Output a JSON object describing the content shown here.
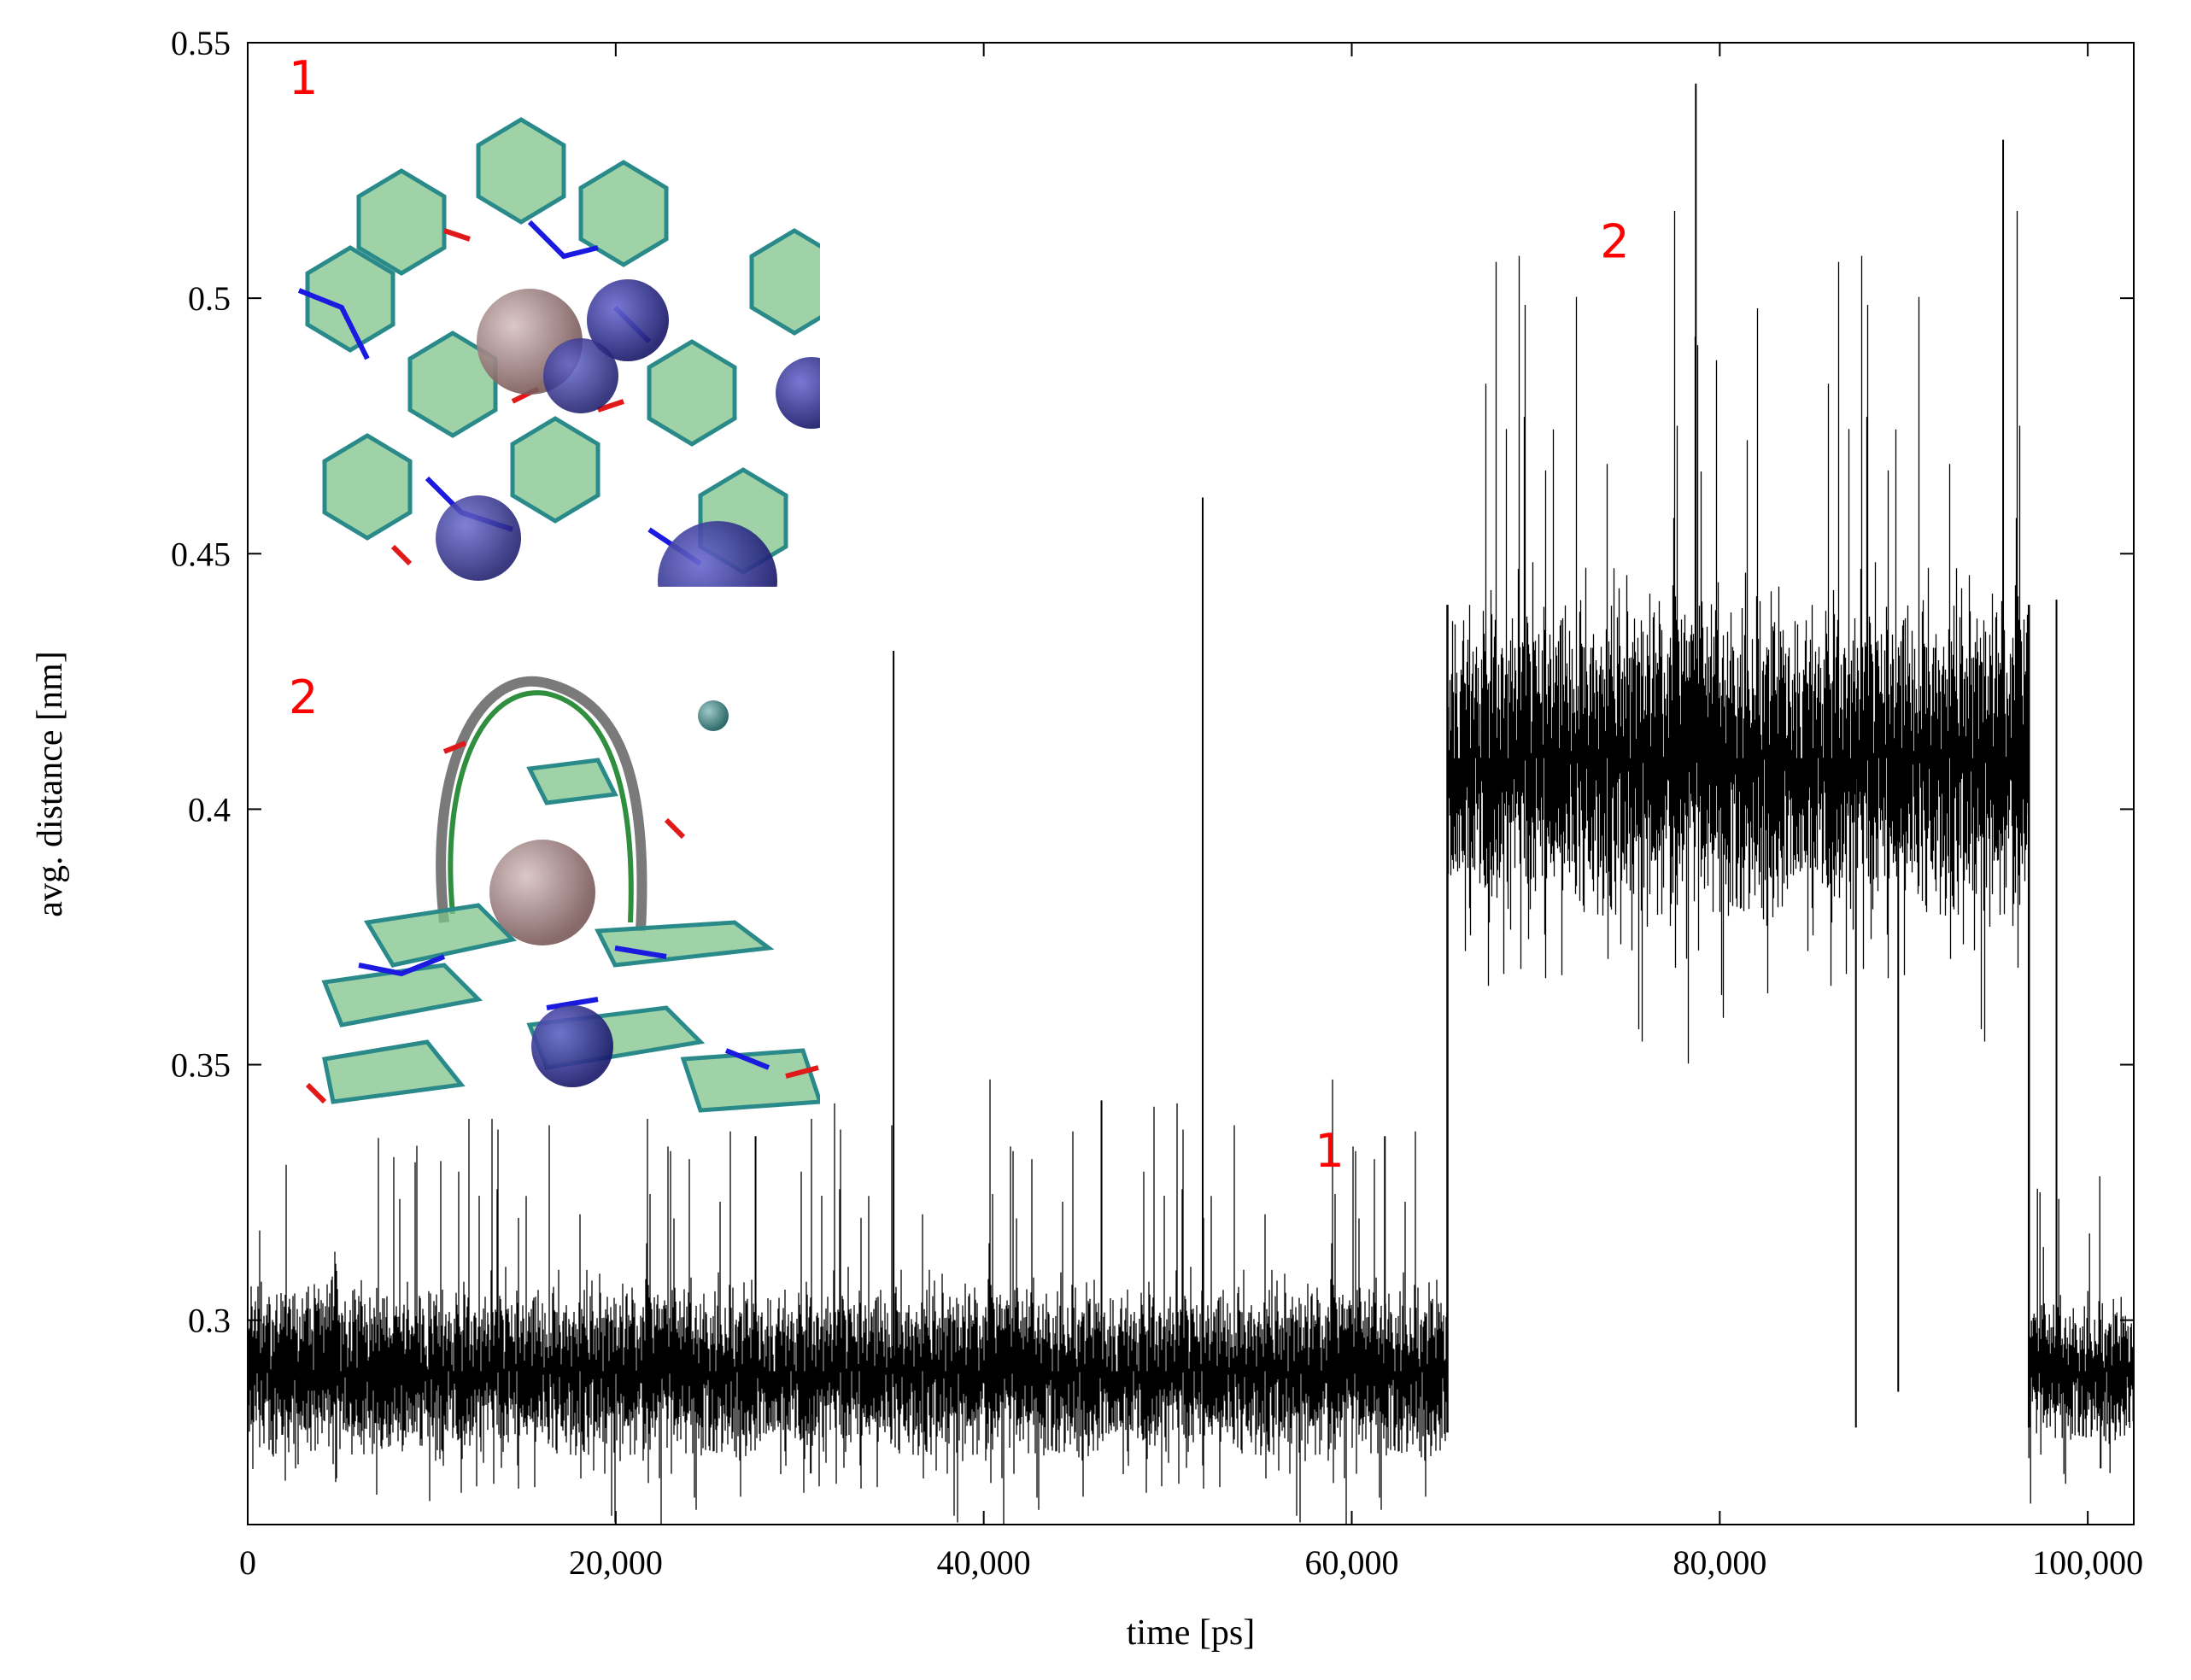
{
  "chart_data": {
    "type": "line",
    "xlabel": "time [ps]",
    "ylabel": "avg. distance [nm]",
    "xlim": [
      0,
      102500
    ],
    "ylim": [
      0.26,
      0.55
    ],
    "grid": false,
    "x_ticks": [
      0,
      20000,
      40000,
      60000,
      80000,
      100000
    ],
    "x_tick_labels": [
      "0",
      "20,000",
      "40,000",
      "60,000",
      "80,000",
      "100,000"
    ],
    "y_ticks": [
      0.3,
      0.35,
      0.4,
      0.45,
      0.5,
      0.55
    ],
    "y_tick_labels": [
      "0.3",
      "0.35",
      "0.4",
      "0.45",
      "0.5",
      "0.55"
    ],
    "line_color": "#000000",
    "annotation_color": "#ff0000",
    "segments": [
      {
        "x_start": 0,
        "x_end": 65200,
        "mean": 0.29,
        "low": 0.278,
        "high": 0.31
      },
      {
        "x_start": 65200,
        "x_end": 96800,
        "mean": 0.41,
        "low": 0.38,
        "high": 0.44
      },
      {
        "x_start": 96800,
        "x_end": 102500,
        "mean": 0.29,
        "low": 0.279,
        "high": 0.305
      }
    ],
    "spikes": [
      {
        "x": 35100,
        "y": 0.431
      },
      {
        "x": 51900,
        "y": 0.461
      },
      {
        "x": 78700,
        "y": 0.542
      },
      {
        "x": 95400,
        "y": 0.531
      },
      {
        "x": 98300,
        "y": 0.441
      },
      {
        "x": 87400,
        "y": 0.279
      },
      {
        "x": 89700,
        "y": 0.286
      },
      {
        "x": 46400,
        "y": 0.343
      },
      {
        "x": 27600,
        "y": 0.336
      },
      {
        "x": 61800,
        "y": 0.336
      },
      {
        "x": 30600,
        "y": 0.27
      },
      {
        "x": 100700,
        "y": 0.271
      }
    ],
    "annotations": [
      {
        "text": "1",
        "x": 58000,
        "y": 0.33
      },
      {
        "text": "2",
        "x": 73500,
        "y": 0.508
      }
    ],
    "insets": [
      {
        "label": "1"
      },
      {
        "label": "2"
      }
    ]
  }
}
